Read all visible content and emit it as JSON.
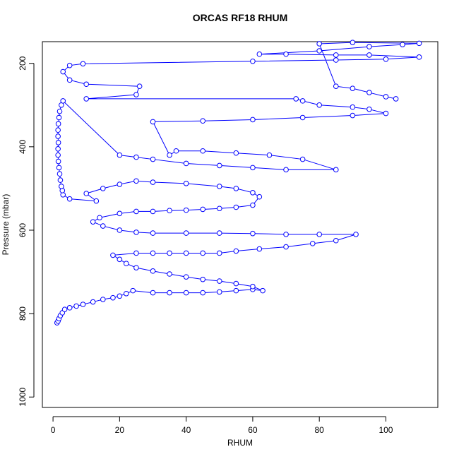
{
  "chart_data": {
    "type": "line",
    "title": "ORCAS RF18 RHUM",
    "x_label": "RHUM",
    "y_label": "Pressure (mbar)",
    "color": "#0000ff",
    "marker": "circle",
    "xlim": [
      -3.2,
      115.6
    ],
    "ylim": [
      1025,
      148
    ],
    "xticks": [
      0,
      20,
      40,
      60,
      80,
      100
    ],
    "yticks": [
      200,
      400,
      600,
      800,
      1000
    ],
    "x": [
      1.2,
      1.5,
      1.8,
      2.2,
      2.8,
      3.5,
      5,
      7,
      9,
      12,
      15,
      18,
      20,
      22,
      24,
      30,
      35,
      40,
      45,
      50,
      55,
      60,
      63,
      60,
      55,
      50,
      45,
      40,
      35,
      30,
      25,
      22,
      20,
      18,
      25,
      30,
      35,
      40,
      45,
      50,
      55,
      62,
      70,
      78,
      85,
      91,
      80,
      70,
      60,
      50,
      40,
      30,
      25,
      20,
      15,
      12,
      14,
      20,
      25,
      30,
      35,
      40,
      45,
      50,
      55,
      60,
      62,
      60,
      55,
      50,
      40,
      30,
      25,
      20,
      15,
      10,
      13,
      5,
      3,
      2.8,
      2.5,
      2.2,
      2,
      1.8,
      1.6,
      1.5,
      1.5,
      1.6,
      1.5,
      1.5,
      1.6,
      1.8,
      2,
      2.5,
      3,
      20,
      25,
      30,
      40,
      50,
      60,
      70,
      85,
      75,
      65,
      55,
      45,
      37,
      35,
      30,
      45,
      60,
      75,
      90,
      100,
      95,
      90,
      80,
      75,
      73,
      10,
      25,
      26,
      10,
      5,
      3,
      5,
      9,
      60,
      85,
      100,
      110,
      95,
      85,
      70,
      62,
      80,
      95,
      105,
      110,
      90,
      80,
      85,
      90,
      95,
      100,
      103
    ],
    "values": [
      822,
      818,
      812,
      805,
      798,
      790,
      786,
      782,
      778,
      772,
      766,
      762,
      758,
      752,
      745,
      750,
      750,
      750,
      750,
      748,
      745,
      742,
      745,
      735,
      728,
      722,
      718,
      712,
      705,
      698,
      690,
      680,
      670,
      660,
      655,
      655,
      655,
      655,
      655,
      655,
      650,
      645,
      640,
      632,
      625,
      610,
      610,
      610,
      608,
      607,
      607,
      607,
      605,
      600,
      590,
      580,
      570,
      560,
      555,
      555,
      553,
      552,
      550,
      548,
      545,
      540,
      520,
      510,
      500,
      495,
      488,
      485,
      482,
      490,
      500,
      512,
      530,
      525,
      515,
      505,
      495,
      480,
      465,
      450,
      435,
      420,
      405,
      390,
      375,
      360,
      345,
      330,
      315,
      300,
      290,
      420,
      425,
      430,
      440,
      445,
      450,
      455,
      455,
      430,
      420,
      415,
      410,
      410,
      420,
      340,
      338,
      335,
      330,
      325,
      320,
      310,
      305,
      300,
      290,
      285,
      285,
      275,
      255,
      250,
      240,
      220,
      205,
      201,
      195,
      192,
      190,
      185,
      180,
      180,
      178,
      178,
      170,
      160,
      155,
      152,
      150,
      153,
      255,
      260,
      270,
      280,
      285
    ]
  }
}
